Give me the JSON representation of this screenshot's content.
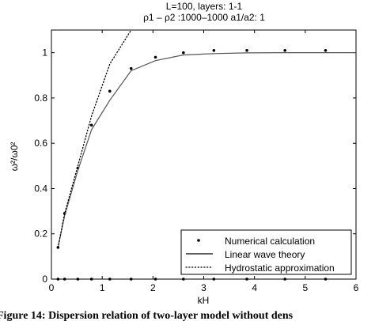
{
  "chart_data": {
    "type": "line",
    "title": "L=100, layers: 1-1",
    "subtitle": "ρ1 – ρ2 :1000–1000  a1/a2: 1",
    "xlabel": "kH",
    "ylabel": "ω²/ω0²",
    "xlim": [
      0,
      6
    ],
    "ylim": [
      0,
      1.1
    ],
    "x_ticks": [
      "0",
      "1",
      "2",
      "3",
      "4",
      "5",
      "6"
    ],
    "y_ticks": [
      "0",
      "0.2",
      "0.4",
      "0.6",
      "0.8",
      "1"
    ],
    "grid": false,
    "legend_position": "bottom-right",
    "series": [
      {
        "name": "Numerical calculation",
        "style": "dots",
        "x": [
          0.13,
          0.26,
          0.52,
          0.79,
          1.15,
          1.57,
          2.05,
          2.6,
          3.2,
          3.85,
          4.6,
          5.4
        ],
        "y": [
          0.14,
          0.29,
          0.49,
          0.68,
          0.83,
          0.93,
          0.98,
          1.0,
          1.01,
          1.01,
          1.01,
          1.01
        ]
      },
      {
        "name": "Linear wave theory",
        "style": "solid",
        "x": [
          0.13,
          0.26,
          0.52,
          0.79,
          1.15,
          1.57,
          2.05,
          2.6,
          3.2,
          3.85,
          4.6,
          5.4,
          6.0
        ],
        "y": [
          0.14,
          0.28,
          0.48,
          0.66,
          0.79,
          0.92,
          0.965,
          0.99,
          0.996,
          0.999,
          1.0,
          1.0,
          1.0
        ]
      },
      {
        "name": "Hydrostatic approximation",
        "style": "dotted",
        "x": [
          0.13,
          0.26,
          0.52,
          0.79,
          1.15,
          1.57
        ],
        "y": [
          0.14,
          0.29,
          0.5,
          0.72,
          0.95,
          1.1
        ]
      },
      {
        "name": "",
        "style": "dots",
        "x": [
          0.13,
          0.26,
          0.52,
          0.79,
          1.15,
          1.57,
          2.05,
          2.6,
          3.2,
          3.85,
          4.6,
          5.4
        ],
        "y": [
          0,
          0,
          0,
          0,
          0,
          0,
          0,
          0,
          0,
          0,
          0,
          0
        ]
      }
    ]
  },
  "caption": "Figure 14: Dispersion relation of two-layer model without dens"
}
